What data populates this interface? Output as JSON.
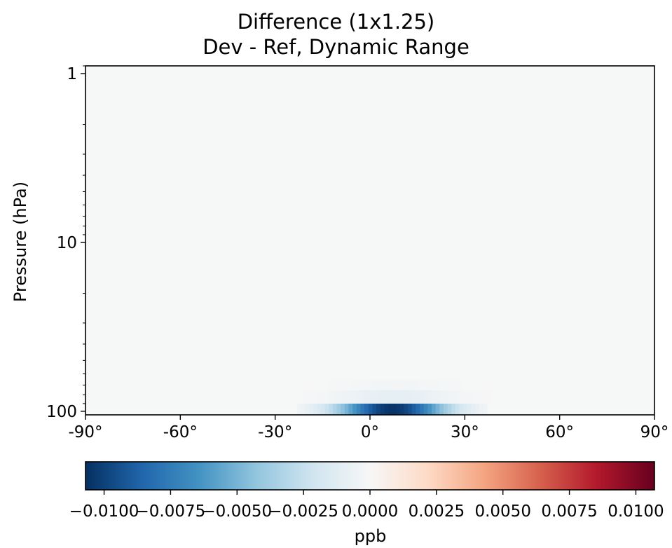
{
  "chart_data": {
    "type": "heatmap",
    "title": "Difference (1x1.25)",
    "subtitle": "Dev - Ref, Dynamic Range",
    "xlabel": "",
    "ylabel": "Pressure (hPa)",
    "x_ticks": [
      "-90°",
      "-60°",
      "-30°",
      "0°",
      "30°",
      "60°",
      "90°"
    ],
    "x_tick_values": [
      -90,
      -60,
      -30,
      0,
      30,
      60,
      90
    ],
    "xlim": [
      -90,
      90
    ],
    "y_ticks": [
      "1",
      "10",
      "100"
    ],
    "y_tick_values": [
      1,
      10,
      100
    ],
    "ylim": [
      105,
      0.9
    ],
    "yscale": "log",
    "colorbar": {
      "label": "ppb",
      "colormap": "RdBu_r",
      "vmin": -0.0107,
      "vmax": 0.0107,
      "ticks": [
        "−0.0100",
        "−0.0075",
        "−0.0050",
        "−0.0025",
        "0.0000",
        "0.0025",
        "0.0050",
        "0.0075",
        "0.0100"
      ],
      "tick_values": [
        -0.01,
        -0.0075,
        -0.005,
        -0.0025,
        0.0,
        0.0025,
        0.005,
        0.0075,
        0.01
      ]
    },
    "features": [
      {
        "lat_center": 7,
        "lat_halfwidth": 30,
        "pmin": 90,
        "pmax": 105,
        "value": -0.0105
      },
      {
        "lat_center": 8,
        "lat_halfwidth": 32,
        "pmin": 75,
        "pmax": 90,
        "value": -0.001
      },
      {
        "lat_center": 8,
        "lat_halfwidth": 30,
        "pmin": 65,
        "pmax": 75,
        "value": -0.0003
      }
    ],
    "background_value": -5e-05
  },
  "colors": {
    "map_background": "#f5f7f7",
    "axis": "#000000"
  }
}
